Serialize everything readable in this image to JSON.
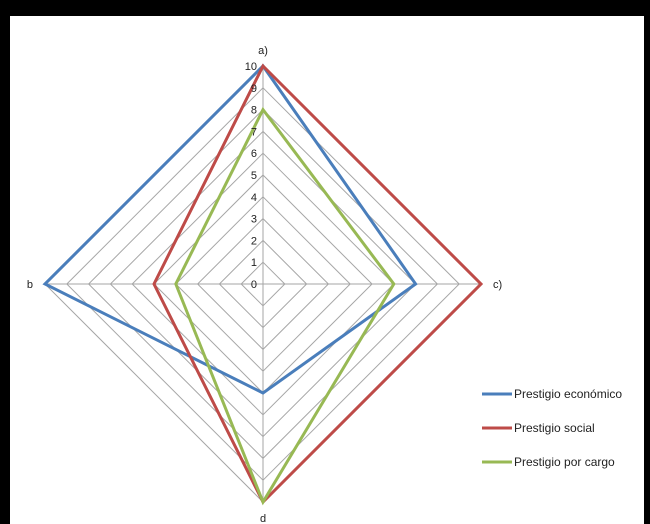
{
  "chart_data": {
    "type": "radar",
    "title": "",
    "categories": [
      "a)",
      "c)",
      "d",
      "b"
    ],
    "rmin": 0,
    "rmax": 10,
    "ticks": [
      0,
      1,
      2,
      3,
      4,
      5,
      6,
      7,
      8,
      9,
      10
    ],
    "grid": true,
    "legend_position": "right",
    "series": [
      {
        "name": "Prestigio económico",
        "color": "#4a7ebb",
        "values": [
          10,
          7,
          5,
          10
        ]
      },
      {
        "name": "Prestigio social",
        "color": "#be4b48",
        "values": [
          10,
          10,
          10,
          5
        ]
      },
      {
        "name": "Prestigio por cargo",
        "color": "#98b954",
        "values": [
          8,
          6,
          10,
          4
        ]
      }
    ]
  }
}
